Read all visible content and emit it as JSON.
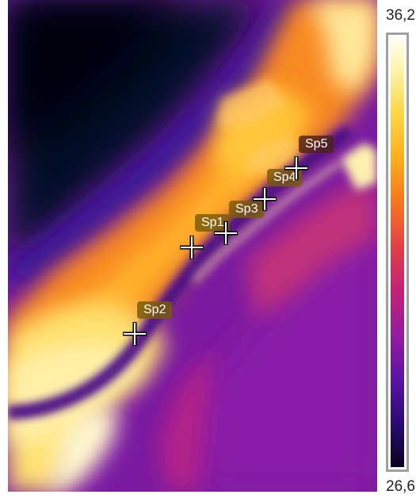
{
  "scale": {
    "max_label": "36,2",
    "min_label": "26,6",
    "max_value": 36.2,
    "min_value": 26.6,
    "palette": "iron"
  },
  "spots": [
    {
      "id": "sp1",
      "label": "Sp1"
    },
    {
      "id": "sp2",
      "label": "Sp2"
    },
    {
      "id": "sp3",
      "label": "Sp3"
    },
    {
      "id": "sp4",
      "label": "Sp4"
    },
    {
      "id": "sp5",
      "label": "Sp5"
    }
  ],
  "colors": {
    "label_dark": "#502214",
    "label_olive": "#785c0a",
    "colorbar_frame": "#a0a0a0"
  }
}
